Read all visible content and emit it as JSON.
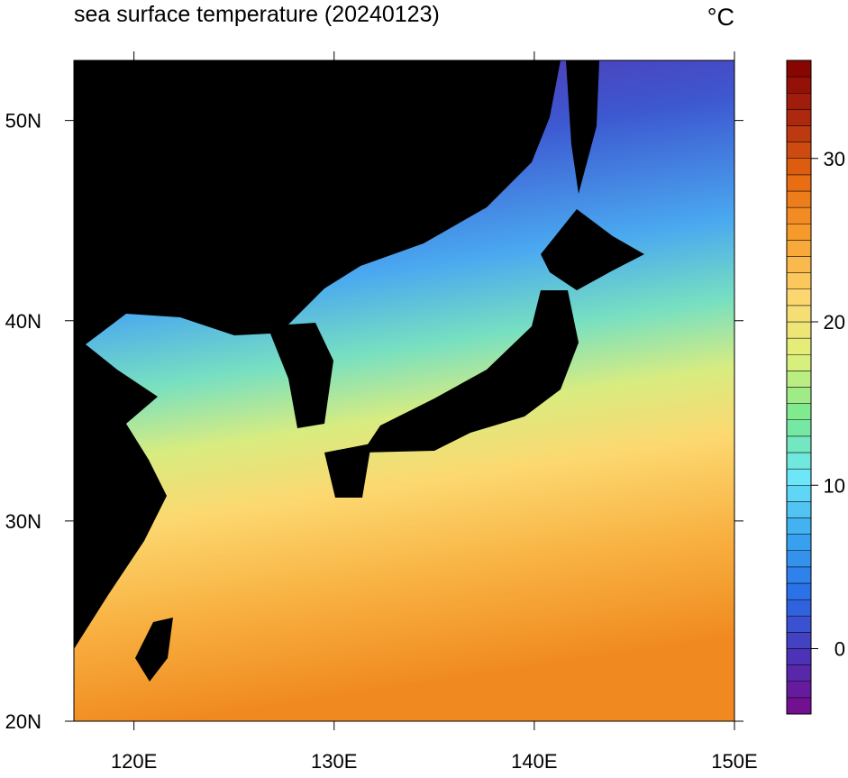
{
  "title": "sea surface temperature (20240123)",
  "unit": "°C",
  "map": {
    "xlim": [
      117,
      150
    ],
    "ylim": [
      20,
      53
    ],
    "xticks": [
      {
        "value": 120,
        "label": "120E"
      },
      {
        "value": 130,
        "label": "130E"
      },
      {
        "value": 140,
        "label": "140E"
      },
      {
        "value": 150,
        "label": "150E"
      }
    ],
    "yticks": [
      {
        "value": 20,
        "label": "20N"
      },
      {
        "value": 30,
        "label": "30N"
      },
      {
        "value": 40,
        "label": "40N"
      },
      {
        "value": 50,
        "label": "50N"
      }
    ]
  },
  "colorbar": {
    "lim": [
      -4,
      36
    ],
    "ticks": [
      0,
      10,
      20,
      30
    ],
    "colors": [
      "#7a0a8c",
      "#4a34b8",
      "#2a6ee8",
      "#3aa8f0",
      "#6ee8f8",
      "#78e890",
      "#e0f07a",
      "#fcd870",
      "#f8a030",
      "#e86a10",
      "#b02a10",
      "#800000"
    ]
  }
}
